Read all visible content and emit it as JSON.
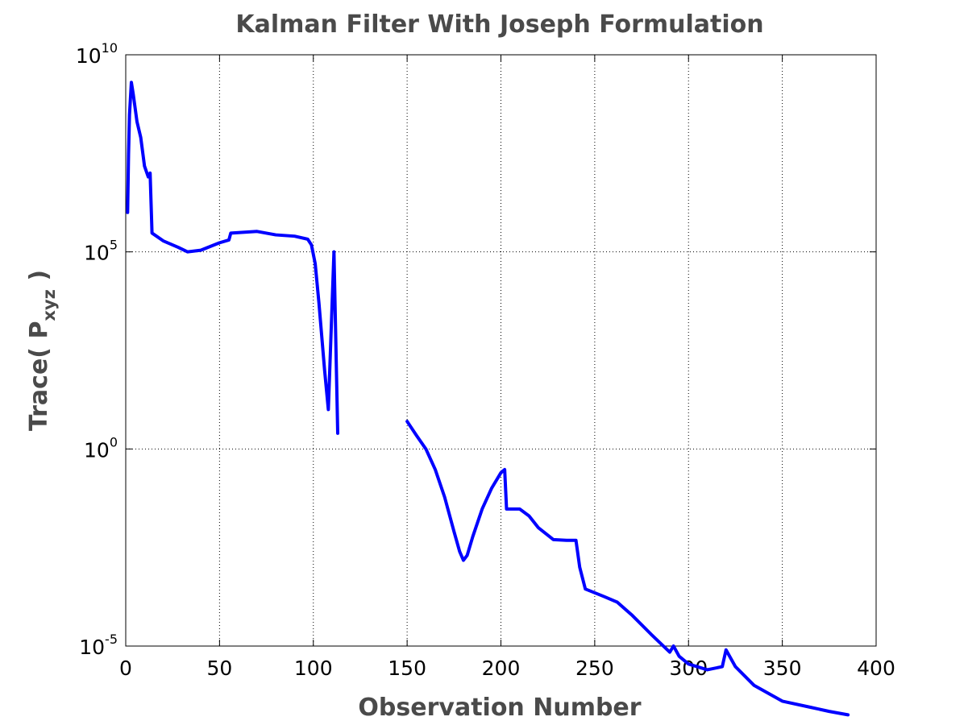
{
  "chart_data": {
    "type": "line",
    "title": "Kalman Filter With Joseph Formulation",
    "xlabel": "Observation Number",
    "ylabel": {
      "prefix": "Trace( P",
      "subscript": "xyz",
      "suffix": " )"
    },
    "xlim": [
      0,
      400
    ],
    "ylim_exponents": [
      -5,
      10
    ],
    "yscale": "log",
    "grid": true,
    "x_ticks": [
      "0",
      "50",
      "100",
      "150",
      "200",
      "250",
      "300",
      "350",
      "400"
    ],
    "y_ticks": [
      {
        "base": "10",
        "exp": "10"
      },
      {
        "base": "10",
        "exp": "5"
      },
      {
        "base": "10",
        "exp": "0"
      },
      {
        "base": "10",
        "exp": "-5"
      }
    ],
    "line_color": "#0000ff",
    "series": [
      {
        "segments": [
          [
            [
              1,
              1000000.0
            ],
            [
              1.5,
              30000000.0
            ],
            [
              2,
              300000000.0
            ],
            [
              3,
              2000000000.0
            ],
            [
              4,
              1000000000.0
            ],
            [
              6,
              200000000.0
            ],
            [
              8,
              80000000.0
            ],
            [
              10,
              15000000.0
            ],
            [
              12,
              8000000.0
            ],
            [
              13,
              10000000.0
            ],
            [
              14,
              300000.0
            ],
            [
              20,
              190000.0
            ],
            [
              28,
              130000.0
            ],
            [
              33,
              100000.0
            ],
            [
              40,
              110000.0
            ],
            [
              50,
              170000.0
            ],
            [
              55,
              200000.0
            ],
            [
              56,
              300000.0
            ],
            [
              70,
              330000.0
            ],
            [
              80,
              270000.0
            ],
            [
              90,
              250000.0
            ],
            [
              97,
              210000.0
            ],
            [
              99,
              150000.0
            ],
            [
              101,
              50000.0
            ],
            [
              103,
              5000.0
            ],
            [
              106,
              100.0
            ],
            [
              108,
              10.0
            ],
            [
              111,
              100000.0
            ],
            [
              113,
              2.5
            ]
          ],
          [
            [
              150,
              5.0
            ],
            [
              155,
              2.2
            ],
            [
              160,
              1.0
            ],
            [
              165,
              0.3
            ],
            [
              170,
              0.06
            ],
            [
              175,
              0.008
            ],
            [
              178,
              0.0025
            ],
            [
              180,
              0.0015
            ],
            [
              182,
              0.002
            ],
            [
              185,
              0.006
            ],
            [
              190,
              0.03
            ],
            [
              195,
              0.1
            ],
            [
              200,
              0.25
            ],
            [
              202,
              0.3
            ],
            [
              203,
              0.03
            ],
            [
              210,
              0.03
            ],
            [
              215,
              0.02
            ],
            [
              220,
              0.01
            ],
            [
              228,
              0.005
            ],
            [
              235,
              0.0048
            ],
            [
              240,
              0.0048
            ],
            [
              242,
              0.001
            ],
            [
              245,
              0.00028
            ],
            [
              255,
              0.00018
            ],
            [
              262,
              0.00013
            ],
            [
              270,
              6e-05
            ],
            [
              280,
              2e-05
            ],
            [
              290,
              7e-06
            ],
            [
              292,
              1e-05
            ],
            [
              295,
              5.5e-06
            ],
            [
              300,
              3.5e-06
            ],
            [
              310,
              2.5e-06
            ],
            [
              318,
              3e-06
            ],
            [
              320,
              8e-06
            ],
            [
              325,
              3e-06
            ],
            [
              335,
              1e-06
            ],
            [
              350,
              4e-07
            ],
            [
              365,
              2.8e-07
            ],
            [
              375,
              2.2e-07
            ],
            [
              385,
              1.8e-07
            ]
          ]
        ]
      }
    ]
  }
}
